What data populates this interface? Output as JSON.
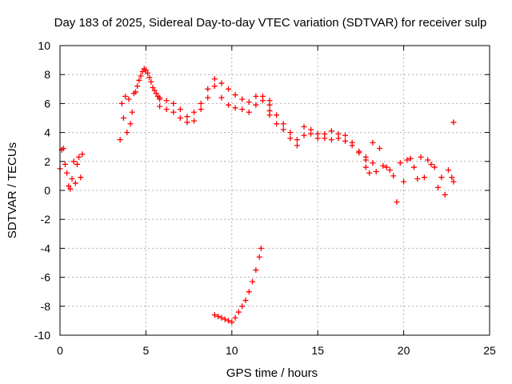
{
  "chart_data": {
    "type": "scatter",
    "title": "Day 183 of 2025, Sidereal Day-to-day VTEC variation (SDTVAR) for receiver sulp",
    "xlabel": "GPS time / hours",
    "ylabel": "SDTVAR / TECUs",
    "xlim": [
      0,
      25
    ],
    "ylim": [
      -10,
      10
    ],
    "x_ticks": [
      0,
      5,
      10,
      15,
      20,
      25
    ],
    "y_ticks": [
      -10,
      -8,
      -6,
      -4,
      -2,
      0,
      2,
      4,
      6,
      8,
      10
    ],
    "grid": true,
    "marker": "+",
    "color": "#ff0000",
    "segments": [
      {
        "name": "early-left",
        "x": [
          0.0,
          0.1,
          0.2,
          0.3,
          0.4,
          0.5,
          0.6,
          0.7,
          0.8,
          0.9,
          1.0,
          1.1,
          1.2,
          1.3
        ],
        "y": [
          1.5,
          2.8,
          2.9,
          1.8,
          1.2,
          0.3,
          0.1,
          0.8,
          2.0,
          0.5,
          1.8,
          2.3,
          0.9,
          2.5
        ]
      },
      {
        "name": "morning-peak",
        "x": [
          3.5,
          3.6,
          3.7,
          3.8,
          3.9,
          4.0,
          4.1,
          4.2,
          4.3,
          4.4,
          4.5,
          4.6,
          4.7,
          4.8,
          4.9,
          5.0,
          5.1,
          5.2,
          5.3,
          5.4,
          5.5,
          5.6,
          5.7,
          5.8
        ],
        "y": [
          3.5,
          6.0,
          5.0,
          6.5,
          4.0,
          6.3,
          4.6,
          5.4,
          6.7,
          6.8,
          7.2,
          7.6,
          7.9,
          8.2,
          8.4,
          8.3,
          8.1,
          7.8,
          7.5,
          7.1,
          6.9,
          6.7,
          6.5,
          6.3
        ]
      },
      {
        "name": "midday-a",
        "x": [
          5.8,
          6.2,
          6.6,
          7.0,
          7.4,
          7.8,
          8.2,
          8.6,
          9.0,
          9.4,
          9.8,
          10.2,
          10.6,
          11.0,
          11.4,
          11.8,
          12.2
        ],
        "y": [
          6.4,
          6.2,
          6.0,
          5.6,
          5.1,
          5.4,
          6.0,
          7.0,
          7.7,
          7.4,
          7.0,
          6.6,
          6.3,
          6.1,
          6.5,
          6.2,
          5.5
        ]
      },
      {
        "name": "midday-b",
        "x": [
          5.8,
          6.2,
          6.6,
          7.0,
          7.4,
          7.8,
          8.2,
          8.6,
          9.0,
          9.4,
          9.8,
          10.2,
          10.6,
          11.0,
          11.4,
          11.8,
          12.2
        ],
        "y": [
          5.8,
          5.6,
          5.4,
          5.0,
          4.7,
          4.8,
          5.6,
          6.4,
          7.2,
          6.4,
          5.9,
          5.7,
          5.6,
          5.4,
          5.9,
          6.5,
          6.2
        ]
      },
      {
        "name": "afternoon-decline",
        "x": [
          12.2,
          12.6,
          13.0,
          13.4,
          13.8,
          14.2,
          14.6,
          15.0,
          15.4,
          15.8,
          16.2,
          16.6,
          17.0,
          17.4,
          17.8,
          18.2
        ],
        "y": [
          5.2,
          4.6,
          4.2,
          3.6,
          3.1,
          4.4,
          4.2,
          3.9,
          3.6,
          4.1,
          3.6,
          3.4,
          3.1,
          2.6,
          2.1,
          1.9
        ]
      },
      {
        "name": "afternoon-decline-b",
        "x": [
          12.2,
          12.6,
          13.0,
          13.4,
          13.8,
          14.2,
          14.6,
          15.0,
          15.4,
          15.8,
          16.2,
          16.6,
          17.0,
          17.4,
          17.8
        ],
        "y": [
          5.9,
          5.2,
          4.6,
          4.0,
          3.5,
          3.8,
          3.9,
          3.6,
          3.9,
          3.5,
          3.9,
          3.8,
          3.3,
          2.7,
          2.3
        ]
      },
      {
        "name": "evening",
        "x": [
          17.8,
          18.2,
          18.6,
          19.0,
          19.4,
          19.8,
          20.2,
          20.6,
          21.0,
          21.4,
          21.8,
          22.2,
          22.6,
          22.9
        ],
        "y": [
          1.6,
          3.3,
          2.9,
          1.6,
          1.0,
          1.9,
          2.1,
          1.6,
          2.3,
          2.1,
          1.6,
          0.9,
          1.4,
          0.6
        ]
      },
      {
        "name": "evening-b",
        "x": [
          18.0,
          18.4,
          18.8,
          19.2,
          19.6,
          20.0,
          20.4,
          20.8,
          21.2,
          21.6,
          22.0,
          22.4,
          22.8
        ],
        "y": [
          1.2,
          1.3,
          1.7,
          1.4,
          -0.8,
          0.6,
          2.2,
          0.8,
          0.9,
          1.8,
          0.2,
          -0.3,
          0.9
        ]
      },
      {
        "name": "outlier",
        "x": [
          22.9
        ],
        "y": [
          4.7
        ]
      },
      {
        "name": "negative-excursion",
        "x": [
          9.0,
          9.2,
          9.4,
          9.6,
          9.8,
          10.0,
          10.2,
          10.4,
          10.6,
          10.8,
          11.0,
          11.2,
          11.4,
          11.6,
          11.7
        ],
        "y": [
          -8.6,
          -8.7,
          -8.8,
          -8.9,
          -9.0,
          -9.1,
          -8.8,
          -8.4,
          -8.0,
          -7.6,
          -7.0,
          -6.3,
          -5.5,
          -4.6,
          -4.0
        ]
      }
    ]
  }
}
